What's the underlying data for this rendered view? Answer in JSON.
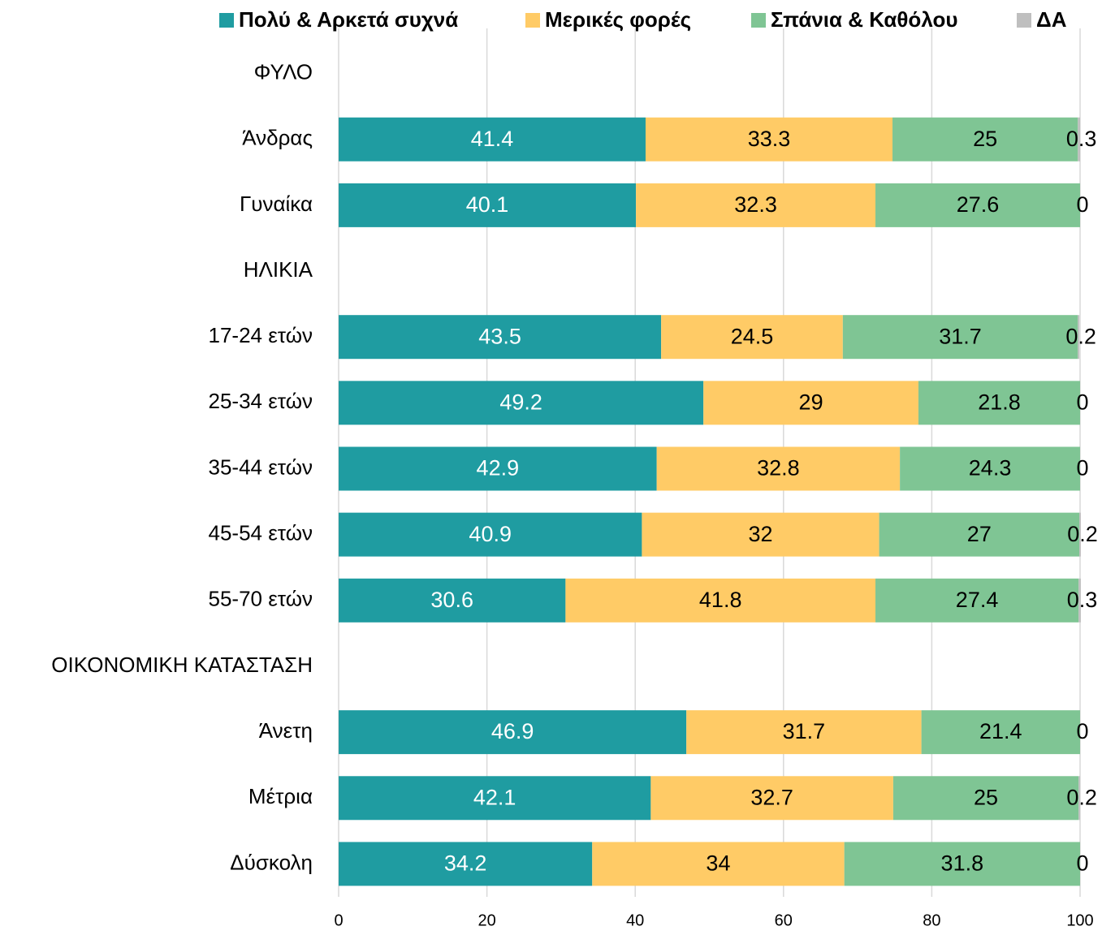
{
  "chart_data": {
    "type": "stacked-barh",
    "categories": [
      "ΦΥΛΟ",
      "Άνδρας",
      "Γυναίκα",
      "ΗΛΙΚΙΑ",
      "17-24 ετών",
      "25-34 ετών",
      "35-44 ετών",
      "45-54 ετών",
      "55-70 ετών",
      "ΟΙΚΟΝΟΜΙΚΗ ΚΑΤΑΣΤΑΣΗ",
      "Άνετη",
      "Μέτρια",
      "Δύσκολη"
    ],
    "series": [
      {
        "name": "Πολύ & Αρκετά συχνά",
        "color": "#1f9ca1",
        "label_color": "#ffffff",
        "values": [
          null,
          41.4,
          40.1,
          null,
          43.5,
          49.2,
          42.9,
          40.9,
          30.6,
          null,
          46.9,
          42.1,
          34.2
        ]
      },
      {
        "name": "Μερικές φορές",
        "color": "#ffcb66",
        "label_color": "#000000",
        "values": [
          null,
          33.3,
          32.3,
          null,
          24.5,
          29,
          32.8,
          32,
          41.8,
          null,
          31.7,
          32.7,
          34
        ]
      },
      {
        "name": "Σπάνια & Καθόλου",
        "color": "#7fc594",
        "label_color": "#000000",
        "values": [
          null,
          25,
          27.6,
          null,
          31.7,
          21.8,
          24.3,
          27,
          27.4,
          null,
          21.4,
          25,
          31.8
        ]
      },
      {
        "name": "ΔΑ",
        "color": "#bfbfbf",
        "label_color": "#000000",
        "values": [
          null,
          0.3,
          0,
          null,
          0.2,
          0,
          0,
          0.2,
          0.3,
          null,
          0,
          0.2,
          0
        ]
      }
    ],
    "xlim": [
      0,
      100
    ],
    "xticks": [
      0,
      20,
      40,
      60,
      80,
      100
    ],
    "grid": true,
    "legend": "top"
  }
}
